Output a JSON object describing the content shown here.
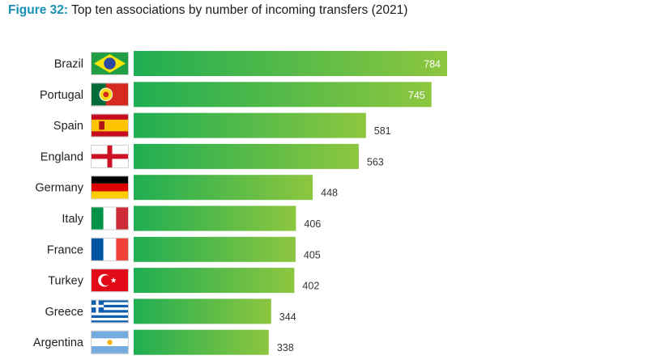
{
  "figure": {
    "label": "Figure 32:",
    "title": "Top ten associations by number of incoming transfers (2021)"
  },
  "colors": {
    "bar_start": "#1fae52",
    "bar_end": "#8dc63f",
    "figure_label": "#1a8fb6"
  },
  "chart_data": {
    "type": "bar",
    "orientation": "horizontal",
    "title": "Top ten associations by number of incoming transfers (2021)",
    "categories": [
      "Brazil",
      "Portugal",
      "Spain",
      "England",
      "Germany",
      "Italy",
      "France",
      "Turkey",
      "Greece",
      "Argentina"
    ],
    "values": [
      784,
      745,
      581,
      563,
      448,
      406,
      405,
      402,
      344,
      338
    ],
    "flag_icons": [
      "flag-brazil-icon",
      "flag-portugal-icon",
      "flag-spain-icon",
      "flag-england-icon",
      "flag-germany-icon",
      "flag-italy-icon",
      "flag-france-icon",
      "flag-turkey-icon",
      "flag-greece-icon",
      "flag-argentina-icon"
    ],
    "xlim": [
      0,
      784
    ],
    "grid": false,
    "legend": "none",
    "value_labels": "bar-end"
  }
}
